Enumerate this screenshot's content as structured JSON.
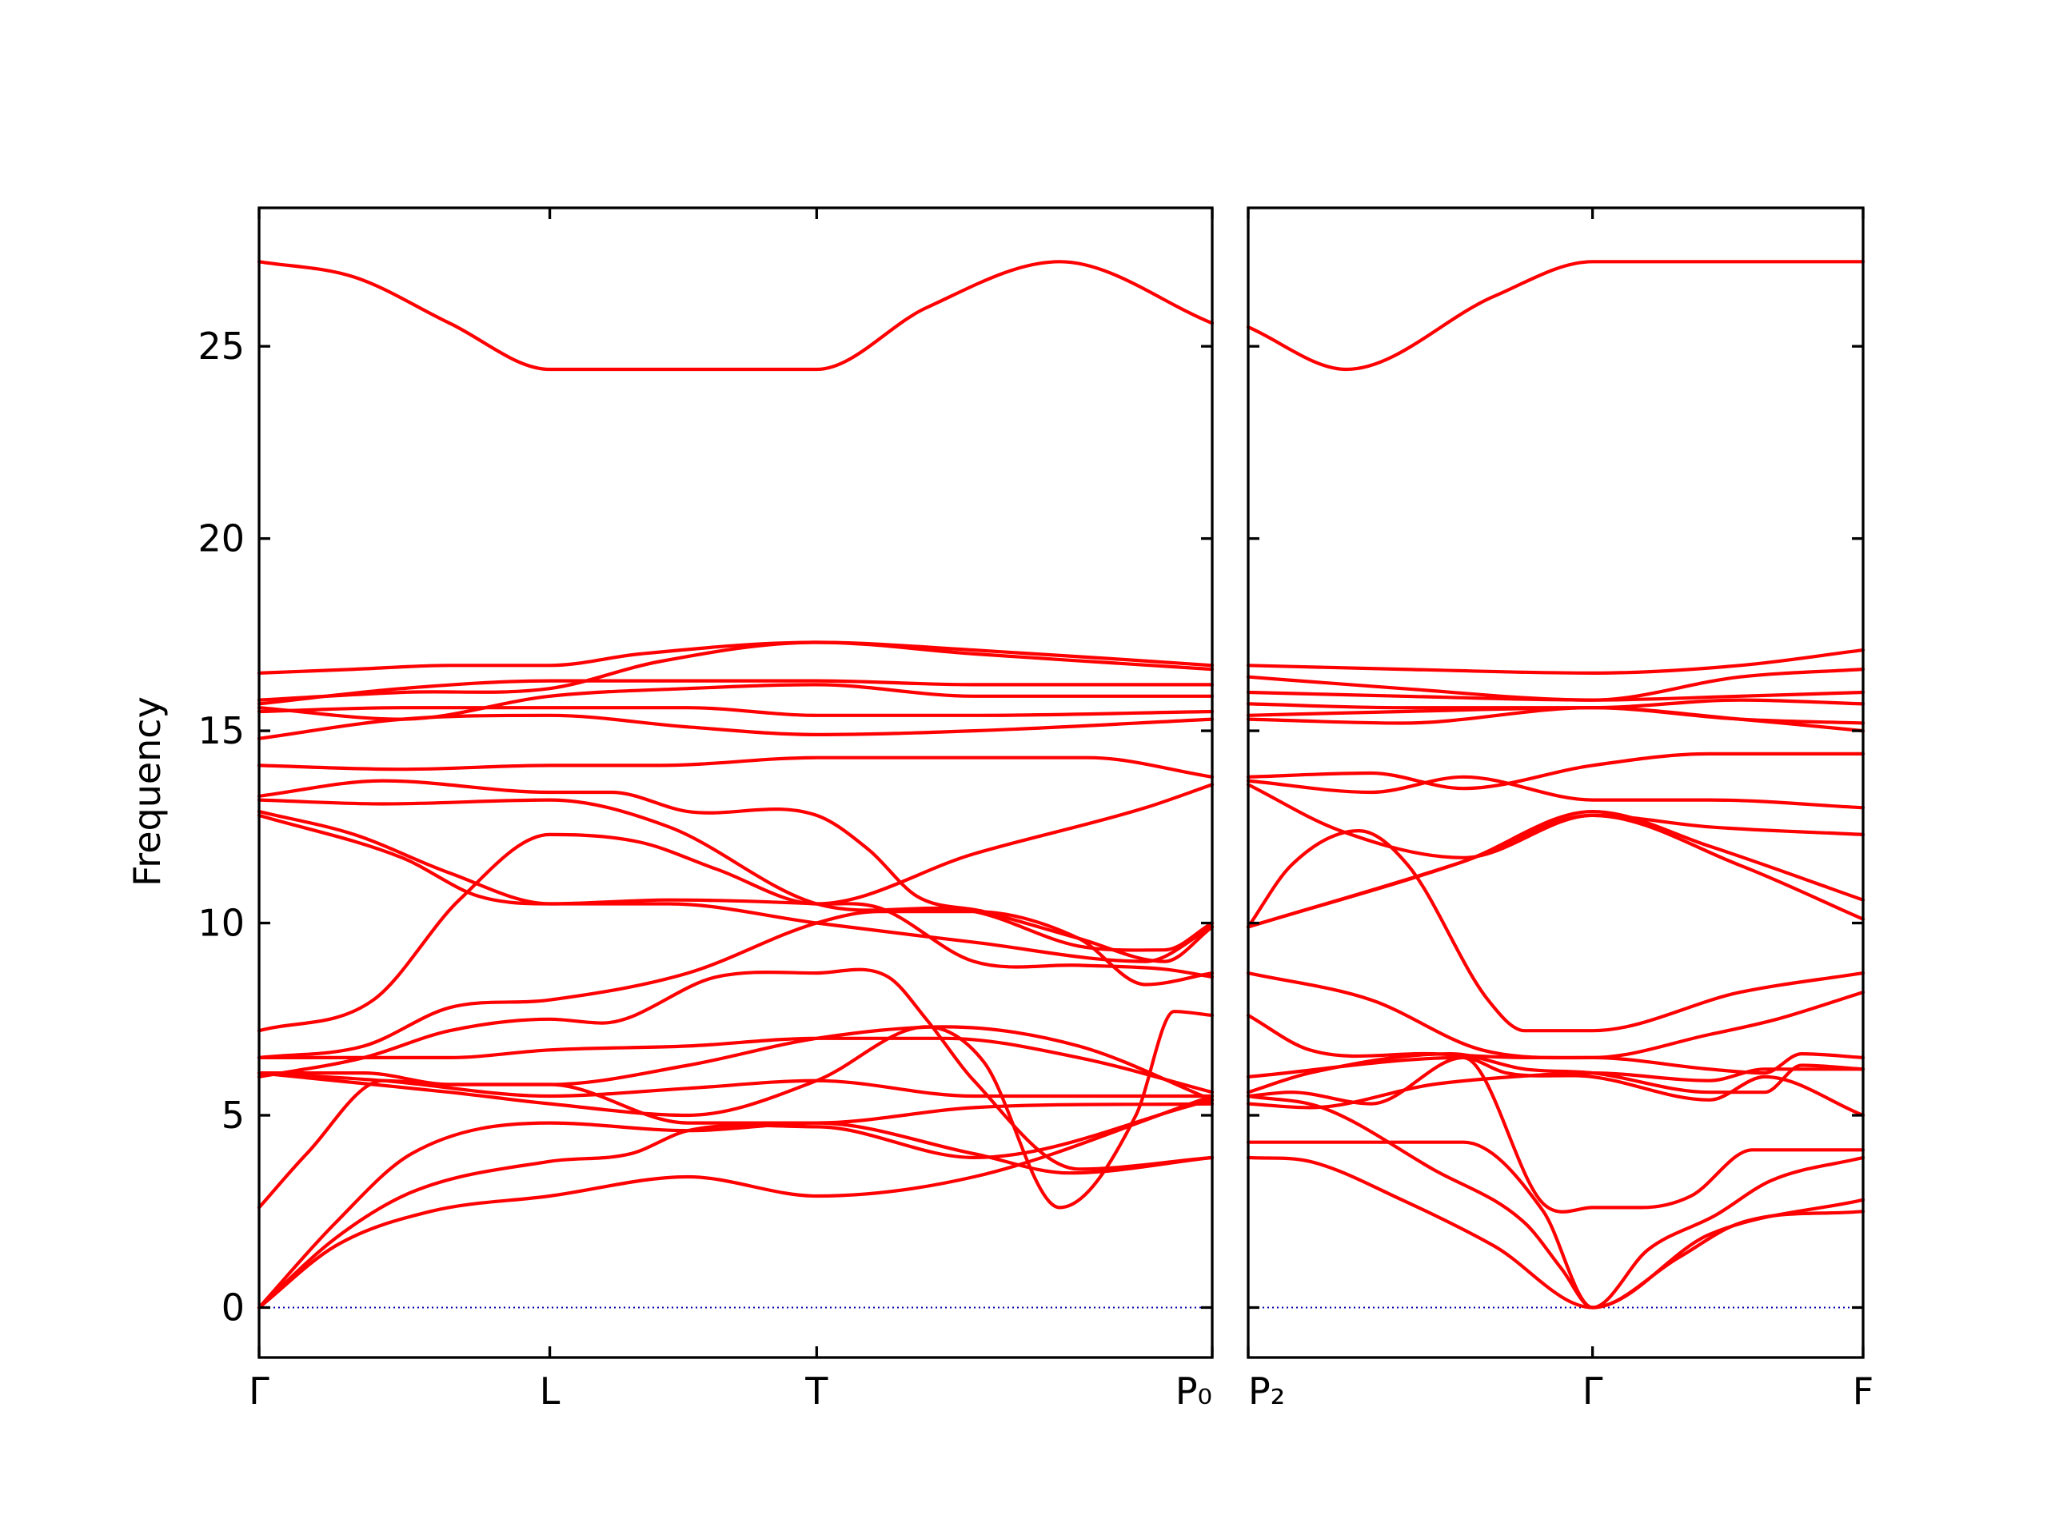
{
  "chart_data": {
    "type": "line",
    "title": "",
    "ylabel": "Frequency",
    "ylim": [
      -1.3,
      28.6
    ],
    "yticks": [
      0,
      5,
      10,
      15,
      20,
      25
    ],
    "colors": {
      "bands": "#ff0000",
      "zero_line": "#0000aa"
    },
    "grid": false,
    "panels": [
      {
        "x_range": [
          0,
          10
        ],
        "xticks": [
          {
            "x": 0,
            "label": "Γ"
          },
          {
            "x": 3.05,
            "label": "L"
          },
          {
            "x": 5.85,
            "label": "T"
          },
          {
            "x": 10,
            "label": "P₀"
          }
        ],
        "series": [
          {
            "x": [
              0,
              1,
              2,
              3.05,
              4.5,
              5.85,
              7,
              8.4,
              10
            ],
            "values": [
              27.2,
              26.8,
              25.6,
              24.4,
              24.4,
              24.4,
              26.0,
              27.2,
              25.6
            ]
          },
          {
            "x": [
              0,
              1,
              2,
              3.05,
              4,
              5.85,
              7.5,
              10
            ],
            "values": [
              16.5,
              16.6,
              16.7,
              16.7,
              17.0,
              17.3,
              17.1,
              16.7
            ]
          },
          {
            "x": [
              0,
              1.5,
              3.05,
              4.2,
              5.85,
              7.5,
              10
            ],
            "values": [
              15.8,
              16.0,
              16.1,
              16.8,
              17.3,
              17.0,
              16.6
            ]
          },
          {
            "x": [
              0,
              1.5,
              3.05,
              4.2,
              5.85,
              7.5,
              10
            ],
            "values": [
              15.7,
              16.1,
              16.3,
              16.3,
              16.3,
              16.2,
              16.2
            ]
          },
          {
            "x": [
              0,
              1.5,
              3.05,
              4.5,
              5.85,
              7.5,
              10
            ],
            "values": [
              15.6,
              15.3,
              15.9,
              16.1,
              16.2,
              15.9,
              15.9
            ]
          },
          {
            "x": [
              0,
              1.5,
              3.05,
              4.5,
              5.85,
              7.5,
              10
            ],
            "values": [
              15.5,
              15.6,
              15.6,
              15.6,
              15.4,
              15.4,
              15.5
            ]
          },
          {
            "x": [
              0,
              1.5,
              3.05,
              4.5,
              5.85,
              7.5,
              10
            ],
            "values": [
              14.8,
              15.3,
              15.4,
              15.1,
              14.9,
              15.0,
              15.3
            ]
          },
          {
            "x": [
              0,
              1.5,
              3.05,
              4.2,
              5.85,
              7.5,
              8.7,
              10
            ],
            "values": [
              14.1,
              14.0,
              14.1,
              14.1,
              14.3,
              14.3,
              14.3,
              13.8
            ]
          },
          {
            "x": [
              0,
              1.3,
              3.05,
              3.7,
              4.5,
              5.85,
              6.4,
              6.9,
              7.6,
              8.6,
              9.5,
              10
            ],
            "values": [
              13.3,
              13.7,
              13.4,
              13.4,
              12.9,
              12.8,
              11.9,
              10.7,
              10.3,
              9.6,
              9.0,
              9.9
            ]
          },
          {
            "x": [
              0,
              1.3,
              3.05,
              4.3,
              5.85,
              7.5,
              8.6,
              9.5,
              10
            ],
            "values": [
              13.2,
              13.1,
              13.2,
              12.5,
              10.5,
              10.3,
              9.4,
              9.3,
              10.0
            ]
          },
          {
            "x": [
              0,
              1,
              2,
              3.05,
              4.3,
              5.85,
              7.5,
              9.3,
              10
            ],
            "values": [
              12.9,
              12.3,
              11.3,
              10.5,
              10.5,
              10.0,
              9.5,
              9.0,
              9.9
            ]
          },
          {
            "x": [
              0,
              1.5,
              2.3,
              3.05,
              4.3,
              5.85,
              6.5,
              7.5,
              8.6,
              9.5,
              10
            ],
            "values": [
              12.8,
              11.7,
              10.7,
              10.5,
              10.6,
              10.5,
              10.4,
              9.0,
              8.9,
              8.8,
              8.6
            ]
          },
          {
            "x": [
              0,
              1.2,
              2.1,
              3.05,
              4,
              4.8,
              5.85,
              7.5,
              9.3,
              10
            ],
            "values": [
              7.2,
              8.0,
              10.6,
              12.3,
              12.1,
              11.4,
              10.5,
              11.8,
              13.0,
              13.6
            ]
          },
          {
            "x": [
              0,
              1.1,
              2.0,
              3.05,
              4.5,
              5.85,
              6.5,
              7.5,
              8.6,
              9.3,
              10
            ],
            "values": [
              6.5,
              6.8,
              7.8,
              8.0,
              8.7,
              10.0,
              10.3,
              10.3,
              9.6,
              8.4,
              8.7
            ]
          },
          {
            "x": [
              0,
              1.1,
              2.0,
              3.05,
              3.6,
              4.8,
              5.85,
              6.6,
              7.0,
              7.5,
              8.6,
              10
            ],
            "values": [
              6.0,
              6.5,
              7.2,
              7.5,
              7.4,
              8.6,
              8.7,
              8.6,
              7.5,
              5.9,
              3.6,
              3.9
            ]
          },
          {
            "x": [
              0,
              1.1,
              2.0,
              3.05,
              4.5,
              5.85,
              7.2,
              8.6,
              10
            ],
            "values": [
              6.5,
              6.5,
              6.5,
              6.7,
              6.8,
              7.0,
              7.0,
              6.5,
              5.6
            ]
          },
          {
            "x": [
              0,
              1.1,
              2.0,
              3.05,
              4.5,
              5.85,
              7.2,
              8.6,
              10
            ],
            "values": [
              6.1,
              6.1,
              5.8,
              5.8,
              6.3,
              7.0,
              7.3,
              6.8,
              5.4
            ]
          },
          {
            "x": [
              0,
              1.2,
              2.0,
              3.05,
              4.5,
              5.85,
              7.0,
              7.6,
              8.4,
              9.2,
              9.6,
              10
            ],
            "values": [
              6.1,
              5.8,
              5.6,
              5.3,
              5.0,
              5.9,
              7.3,
              6.4,
              2.6,
              5.0,
              7.7,
              7.6
            ]
          },
          {
            "x": [
              0,
              1.3,
              3.05,
              4.5,
              5.85,
              7.5,
              10
            ],
            "values": [
              6.1,
              5.9,
              5.5,
              5.7,
              5.9,
              5.5,
              5.5
            ]
          },
          {
            "x": [
              0,
              0.5,
              1.3,
              2.0,
              3.05,
              4.5,
              5.85,
              7.5,
              10
            ],
            "values": [
              2.6,
              4.0,
              5.9,
              5.8,
              5.8,
              4.8,
              4.8,
              5.2,
              5.3
            ]
          },
          {
            "x": [
              0,
              0.8,
              1.6,
              3.05,
              4.5,
              5.85,
              7.5,
              8.5,
              10
            ],
            "values": [
              0,
              2.2,
              4.0,
              4.8,
              4.6,
              4.8,
              4.0,
              3.5,
              3.9
            ]
          },
          {
            "x": [
              0,
              0.8,
              1.6,
              3.05,
              3.9,
              4.5,
              5.85,
              7.5,
              10
            ],
            "values": [
              0,
              1.8,
              3.0,
              3.8,
              4.0,
              4.6,
              4.7,
              3.9,
              5.4
            ]
          },
          {
            "x": [
              0,
              0.8,
              1.8,
              3.05,
              4.5,
              5.85,
              7.5,
              10
            ],
            "values": [
              0,
              1.6,
              2.5,
              2.9,
              3.4,
              2.9,
              3.4,
              5.5
            ]
          }
        ]
      },
      {
        "x_range": [
          0,
          10
        ],
        "xticks": [
          {
            "x": 0,
            "label": "P₂"
          },
          {
            "x": 5.6,
            "label": "Γ"
          },
          {
            "x": 10,
            "label": "F"
          }
        ],
        "series": [
          {
            "x": [
              0,
              1.6,
              4,
              5.6,
              7.5,
              10
            ],
            "values": [
              25.5,
              24.4,
              26.3,
              27.2,
              27.2,
              27.2
            ]
          },
          {
            "x": [
              0,
              2.5,
              5.6,
              8,
              10
            ],
            "values": [
              16.7,
              16.6,
              16.5,
              16.7,
              17.1
            ]
          },
          {
            "x": [
              0,
              2.5,
              5.6,
              8,
              10
            ],
            "values": [
              16.4,
              16.1,
              15.8,
              16.4,
              16.6
            ]
          },
          {
            "x": [
              0,
              2.5,
              5.6,
              8,
              10
            ],
            "values": [
              16.0,
              15.9,
              15.8,
              15.9,
              16.0
            ]
          },
          {
            "x": [
              0,
              2.5,
              5.6,
              8,
              10
            ],
            "values": [
              15.7,
              15.6,
              15.6,
              15.8,
              15.7
            ]
          },
          {
            "x": [
              0,
              2.5,
              5.6,
              8,
              10
            ],
            "values": [
              15.4,
              15.5,
              15.6,
              15.3,
              15.0
            ]
          },
          {
            "x": [
              0,
              2.5,
              5.6,
              8,
              10
            ],
            "values": [
              15.3,
              15.2,
              15.6,
              15.3,
              15.2
            ]
          },
          {
            "x": [
              0,
              2,
              3.5,
              5.6,
              7.5,
              10
            ],
            "values": [
              13.8,
              13.9,
              13.5,
              14.1,
              14.4,
              14.4
            ]
          },
          {
            "x": [
              0,
              2,
              3.5,
              5.6,
              7.5,
              10
            ],
            "values": [
              13.7,
              13.4,
              13.8,
              13.2,
              13.2,
              13.0
            ]
          },
          {
            "x": [
              0,
              3.5,
              5.6,
              7.5,
              10
            ],
            "values": [
              9.9,
              11.6,
              12.8,
              12.5,
              12.3
            ]
          },
          {
            "x": [
              0,
              3.5,
              5.6,
              7.5,
              10
            ],
            "values": [
              9.9,
              11.6,
              12.9,
              12.0,
              10.6
            ]
          },
          {
            "x": [
              0,
              1.5,
              3.5,
              5.6,
              8,
              10
            ],
            "values": [
              13.6,
              12.4,
              11.7,
              12.8,
              11.5,
              10.1
            ]
          },
          {
            "x": [
              0,
              0.7,
              1.8,
              2.6,
              3.9,
              4.5,
              5.6,
              8,
              10
            ],
            "values": [
              9.9,
              11.5,
              12.4,
              11.5,
              8.0,
              7.2,
              7.2,
              8.2,
              8.7
            ]
          },
          {
            "x": [
              0,
              2,
              3.8,
              5.6,
              7.5,
              8.6,
              10
            ],
            "values": [
              8.7,
              8.0,
              6.7,
              6.5,
              7.1,
              7.5,
              8.2
            ]
          },
          {
            "x": [
              0,
              1,
              3,
              4.5,
              5.6,
              7.5,
              8.4,
              9,
              10
            ],
            "values": [
              7.6,
              6.7,
              6.6,
              6.5,
              6.5,
              6.2,
              6.1,
              6.6,
              6.5
            ]
          },
          {
            "x": [
              0,
              1,
              3.3,
              4.5,
              5.6,
              7.5,
              8.4,
              9,
              10
            ],
            "values": [
              5.6,
              6.1,
              6.6,
              6.2,
              6.1,
              5.6,
              5.6,
              6.3,
              6.2
            ]
          },
          {
            "x": [
              0,
              0.7,
              2,
              3.5,
              4.2,
              5.6,
              7.5,
              8.4,
              10
            ],
            "values": [
              5.5,
              5.6,
              5.3,
              6.5,
              6.1,
              6.0,
              5.4,
              6.0,
              5.0
            ]
          },
          {
            "x": [
              0,
              1,
              3,
              4.3,
              5.6,
              7.5,
              8.4,
              10
            ],
            "values": [
              5.3,
              5.2,
              5.8,
              6.0,
              6.1,
              5.9,
              6.2,
              6.2
            ]
          },
          {
            "x": [
              0,
              1.2,
              3,
              4.5,
              5.1,
              5.6,
              7.5,
              10
            ],
            "values": [
              5.5,
              5.2,
              3.6,
              2.2,
              1.0,
              0,
              1.9,
              2.8
            ]
          },
          {
            "x": [
              0,
              1,
              2.5,
              4,
              5.6,
              7,
              8,
              10
            ],
            "values": [
              3.9,
              3.8,
              2.8,
              1.6,
              0,
              1.3,
              2.2,
              2.5
            ]
          },
          {
            "x": [
              0,
              3.5,
              4.8,
              5.6,
              6.4,
              7.2,
              8.2,
              10
            ],
            "values": [
              6.0,
              6.5,
              2.7,
              2.6,
              2.6,
              2.9,
              4.1,
              4.1
            ]
          },
          {
            "x": [
              0,
              3.5,
              4.8,
              5.6,
              6.5,
              7.6,
              8.5,
              10
            ],
            "values": [
              4.3,
              4.3,
              2.5,
              0,
              1.5,
              2.4,
              3.3,
              3.9
            ]
          }
        ]
      }
    ]
  }
}
